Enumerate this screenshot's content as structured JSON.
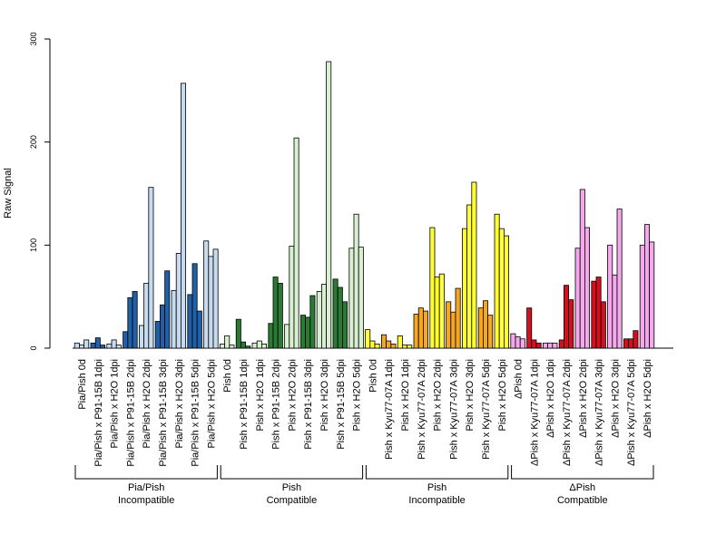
{
  "chart_data": {
    "type": "bar",
    "ylabel": "Raw Signal",
    "ylim": [
      0,
      300
    ],
    "yticks": [
      0,
      100,
      200,
      300
    ],
    "groups": [
      {
        "label_line1": "Pia/Pish",
        "label_line2": "Incompatible",
        "light_color": "#c6dbef",
        "dark_color": "#2060a8",
        "categories": [
          {
            "name": "Pia/Pish 0d",
            "tone": "light",
            "values": [
              5,
              3,
              8
            ]
          },
          {
            "name": "Pia/Pish x P91-15B 1dpi",
            "tone": "dark",
            "values": [
              5,
              10,
              3
            ]
          },
          {
            "name": "Pia/Pish x H2O 1dpi",
            "tone": "light",
            "values": [
              4,
              8,
              3
            ]
          },
          {
            "name": "Pia/Pish x P91-15B 2dpi",
            "tone": "dark",
            "values": [
              16,
              49,
              55
            ]
          },
          {
            "name": "Pia/Pish x H2O 2dpi",
            "tone": "light",
            "values": [
              22,
              63,
              156
            ]
          },
          {
            "name": "Pia/Pish x P91-15B 3dpi",
            "tone": "dark",
            "values": [
              26,
              42,
              75
            ]
          },
          {
            "name": "Pia/Pish x H2O 3dpi",
            "tone": "light",
            "values": [
              56,
              92,
              257
            ]
          },
          {
            "name": "Pia/Pish x P91-15B 5dpi",
            "tone": "dark",
            "values": [
              52,
              82,
              36
            ]
          },
          {
            "name": "Pia/Pish x H2O 5dpi",
            "tone": "light",
            "values": [
              104,
              89,
              96
            ]
          }
        ]
      },
      {
        "label_line1": "Pish",
        "label_line2": "Compatible",
        "light_color": "#d8f0d0",
        "dark_color": "#2a7a34",
        "categories": [
          {
            "name": "Pish 0d",
            "tone": "light",
            "values": [
              4,
              12,
              3
            ]
          },
          {
            "name": "Pish x P91-15B 1dpi",
            "tone": "dark",
            "values": [
              28,
              6,
              2
            ]
          },
          {
            "name": "Pish x H2O 1dpi",
            "tone": "light",
            "values": [
              5,
              7,
              4
            ]
          },
          {
            "name": "Pish x P91-15B 2dpi",
            "tone": "dark",
            "values": [
              24,
              69,
              63
            ]
          },
          {
            "name": "Pish x H2O 2dpi",
            "tone": "light",
            "values": [
              23,
              99,
              204
            ]
          },
          {
            "name": "Pish x P91-15B 3dpi",
            "tone": "dark",
            "values": [
              32,
              30,
              51
            ]
          },
          {
            "name": "Pish x H2O 3dpi",
            "tone": "light",
            "values": [
              55,
              62,
              278
            ]
          },
          {
            "name": "Pish x P91-15B 5dpi",
            "tone": "dark",
            "values": [
              67,
              59,
              45
            ]
          },
          {
            "name": "Pish x H2O 5dpi",
            "tone": "light",
            "values": [
              97,
              130,
              98
            ]
          }
        ]
      },
      {
        "label_line1": "Pish",
        "label_line2": "Incompatible",
        "light_color": "#ffff33",
        "dark_color": "#f5a623",
        "categories": [
          {
            "name": "Pish 0d",
            "tone": "light",
            "values": [
              18,
              7,
              4
            ]
          },
          {
            "name": "Pish x Kyu77-07A 1dpi",
            "tone": "dark",
            "values": [
              13,
              7,
              4
            ]
          },
          {
            "name": "Pish x H2O 1dpi",
            "tone": "light",
            "values": [
              12,
              3,
              3
            ]
          },
          {
            "name": "Pish x Kyu77-07A 2dpi",
            "tone": "dark",
            "values": [
              33,
              39,
              36
            ]
          },
          {
            "name": "Pish x H2O 2dpi",
            "tone": "light",
            "values": [
              117,
              69,
              72
            ]
          },
          {
            "name": "Pish x Kyu77-07A 3dpi",
            "tone": "dark",
            "values": [
              45,
              35,
              58
            ]
          },
          {
            "name": "Pish x H2O 3dpi",
            "tone": "light",
            "values": [
              116,
              139,
              161
            ]
          },
          {
            "name": "Pish x Kyu77-07A 5dpi",
            "tone": "dark",
            "values": [
              39,
              46,
              32
            ]
          },
          {
            "name": "Pish x H2O 5dpi",
            "tone": "light",
            "values": [
              130,
              116,
              109
            ]
          }
        ]
      },
      {
        "label_line1": "ΔPish",
        "label_line2": "Compatible",
        "light_color": "#f5a8ec",
        "dark_color": "#d40f1e",
        "categories": [
          {
            "name": "ΔPish 0d",
            "tone": "light",
            "values": [
              14,
              11,
              9
            ]
          },
          {
            "name": "ΔPish x Kyu77-07A 1dpi",
            "tone": "dark",
            "values": [
              39,
              8,
              5
            ]
          },
          {
            "name": "ΔPish x H2O 1dpi",
            "tone": "light",
            "values": [
              5,
              5,
              5
            ]
          },
          {
            "name": "ΔPish x Kyu77-07A 2dpi",
            "tone": "dark",
            "values": [
              8,
              61,
              47
            ]
          },
          {
            "name": "ΔPish x H2O 2dpi",
            "tone": "light",
            "values": [
              97,
              154,
              117
            ]
          },
          {
            "name": "ΔPish x Kyu77-07A 3dpi",
            "tone": "dark",
            "values": [
              65,
              69,
              45
            ]
          },
          {
            "name": "ΔPish x H2O 3dpi",
            "tone": "light",
            "values": [
              100,
              71,
              135
            ]
          },
          {
            "name": "ΔPish x Kyu77-07A 5dpi",
            "tone": "dark",
            "values": [
              9,
              9,
              17
            ]
          },
          {
            "name": "ΔPish x H2O 5dpi",
            "tone": "light",
            "values": [
              100,
              120,
              103
            ]
          }
        ]
      }
    ]
  }
}
